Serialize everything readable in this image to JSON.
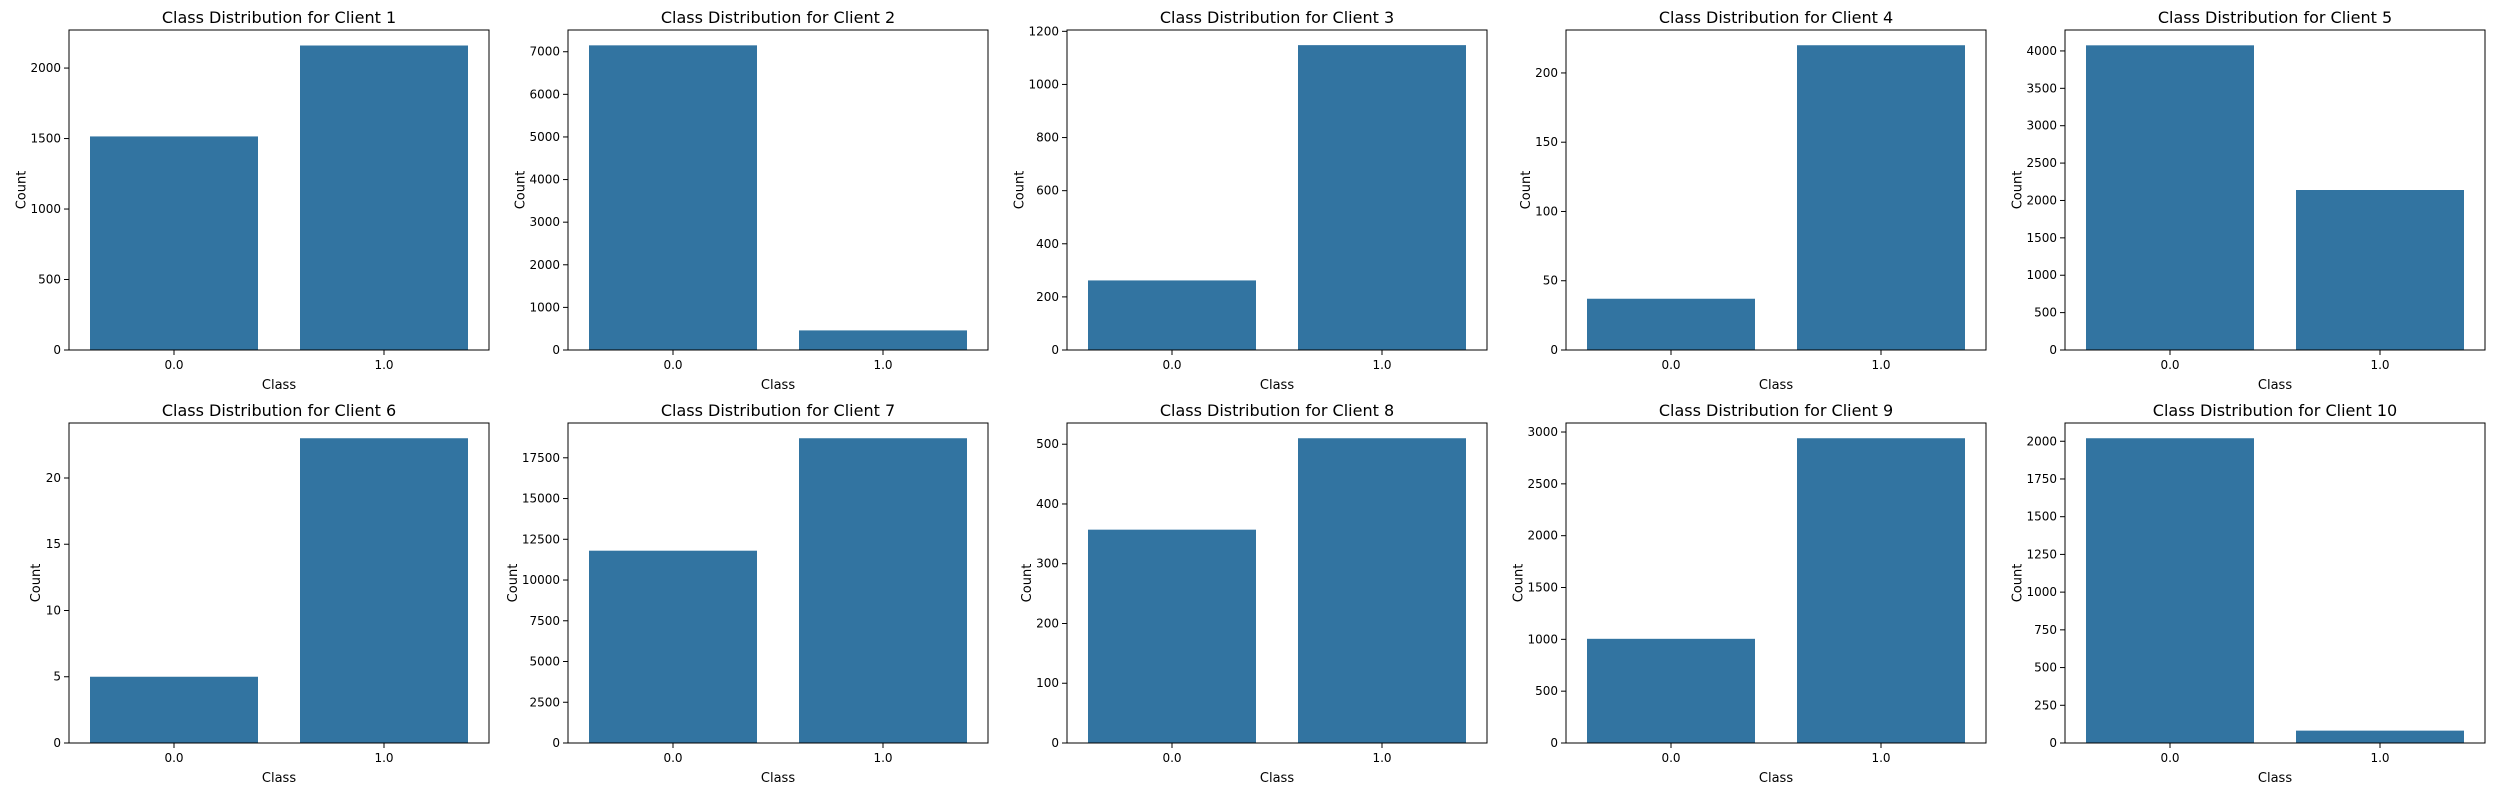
{
  "figure": {
    "bar_color": "#3274a1",
    "tick_color": "#000000"
  },
  "chart_data": [
    {
      "type": "bar",
      "title": "Class Distribution for Client 1",
      "xlabel": "Class",
      "ylabel": "Count",
      "categories": [
        "0.0",
        "1.0"
      ],
      "values": [
        1515,
        2160
      ],
      "ylim": [
        0,
        2270
      ],
      "yticks": [
        0,
        500,
        1000,
        1500,
        2000
      ],
      "ytick_labels": [
        "0",
        "500",
        "1000",
        "1500",
        "2000"
      ],
      "grid": false
    },
    {
      "type": "bar",
      "title": "Class Distribution for Client 2",
      "xlabel": "Class",
      "ylabel": "Count",
      "categories": [
        "0.0",
        "1.0"
      ],
      "values": [
        7150,
        460
      ],
      "ylim": [
        0,
        7510
      ],
      "yticks": [
        0,
        1000,
        2000,
        3000,
        4000,
        5000,
        6000,
        7000
      ],
      "ytick_labels": [
        "0",
        "1000",
        "2000",
        "3000",
        "4000",
        "5000",
        "6000",
        "7000"
      ],
      "grid": false
    },
    {
      "type": "bar",
      "title": "Class Distribution for Client 3",
      "xlabel": "Class",
      "ylabel": "Count",
      "categories": [
        "0.0",
        "1.0"
      ],
      "values": [
        262,
        1148
      ],
      "ylim": [
        0,
        1205
      ],
      "yticks": [
        0,
        200,
        400,
        600,
        800,
        1000,
        1200
      ],
      "ytick_labels": [
        "0",
        "200",
        "400",
        "600",
        "800",
        "1000",
        "1200"
      ],
      "grid": false
    },
    {
      "type": "bar",
      "title": "Class Distribution for Client 4",
      "xlabel": "Class",
      "ylabel": "Count",
      "categories": [
        "0.0",
        "1.0"
      ],
      "values": [
        37,
        220
      ],
      "ylim": [
        0,
        231
      ],
      "yticks": [
        0,
        50,
        100,
        150,
        200
      ],
      "ytick_labels": [
        "0",
        "50",
        "100",
        "150",
        "200"
      ],
      "grid": false
    },
    {
      "type": "bar",
      "title": "Class Distribution for Client 5",
      "xlabel": "Class",
      "ylabel": "Count",
      "categories": [
        "0.0",
        "1.0"
      ],
      "values": [
        4075,
        2140
      ],
      "ylim": [
        0,
        4280
      ],
      "yticks": [
        0,
        500,
        1000,
        1500,
        2000,
        2500,
        3000,
        3500,
        4000
      ],
      "ytick_labels": [
        "0",
        "500",
        "1000",
        "1500",
        "2000",
        "2500",
        "3000",
        "3500",
        "4000"
      ],
      "grid": false
    },
    {
      "type": "bar",
      "title": "Class Distribution for Client 6",
      "xlabel": "Class",
      "ylabel": "Count",
      "categories": [
        "0.0",
        "1.0"
      ],
      "values": [
        5,
        23
      ],
      "ylim": [
        0,
        24.15
      ],
      "yticks": [
        0,
        5,
        10,
        15,
        20
      ],
      "ytick_labels": [
        "0",
        "5",
        "10",
        "15",
        "20"
      ],
      "grid": false
    },
    {
      "type": "bar",
      "title": "Class Distribution for Client 7",
      "xlabel": "Class",
      "ylabel": "Count",
      "categories": [
        "0.0",
        "1.0"
      ],
      "values": [
        11800,
        18700
      ],
      "ylim": [
        0,
        19635
      ],
      "yticks": [
        0,
        2500,
        5000,
        7500,
        10000,
        12500,
        15000,
        17500
      ],
      "ytick_labels": [
        "0",
        "2500",
        "5000",
        "7500",
        "10000",
        "12500",
        "15000",
        "17500"
      ],
      "grid": false
    },
    {
      "type": "bar",
      "title": "Class Distribution for Client 8",
      "xlabel": "Class",
      "ylabel": "Count",
      "categories": [
        "0.0",
        "1.0"
      ],
      "values": [
        357,
        510
      ],
      "ylim": [
        0,
        535.5
      ],
      "yticks": [
        0,
        100,
        200,
        300,
        400,
        500
      ],
      "ytick_labels": [
        "0",
        "100",
        "200",
        "300",
        "400",
        "500"
      ],
      "grid": false
    },
    {
      "type": "bar",
      "title": "Class Distribution for Client 9",
      "xlabel": "Class",
      "ylabel": "Count",
      "categories": [
        "0.0",
        "1.0"
      ],
      "values": [
        1005,
        2940
      ],
      "ylim": [
        0,
        3087
      ],
      "yticks": [
        0,
        500,
        1000,
        1500,
        2000,
        2500,
        3000
      ],
      "ytick_labels": [
        "0",
        "500",
        "1000",
        "1500",
        "2000",
        "2500",
        "3000"
      ],
      "grid": false
    },
    {
      "type": "bar",
      "title": "Class Distribution for Client 10",
      "xlabel": "Class",
      "ylabel": "Count",
      "categories": [
        "0.0",
        "1.0"
      ],
      "values": [
        2020,
        82
      ],
      "ylim": [
        0,
        2121
      ],
      "yticks": [
        0,
        250,
        500,
        750,
        1000,
        1250,
        1500,
        1750,
        2000
      ],
      "ytick_labels": [
        "0",
        "250",
        "500",
        "750",
        "1000",
        "1250",
        "1500",
        "1750",
        "2000"
      ],
      "grid": false
    }
  ]
}
